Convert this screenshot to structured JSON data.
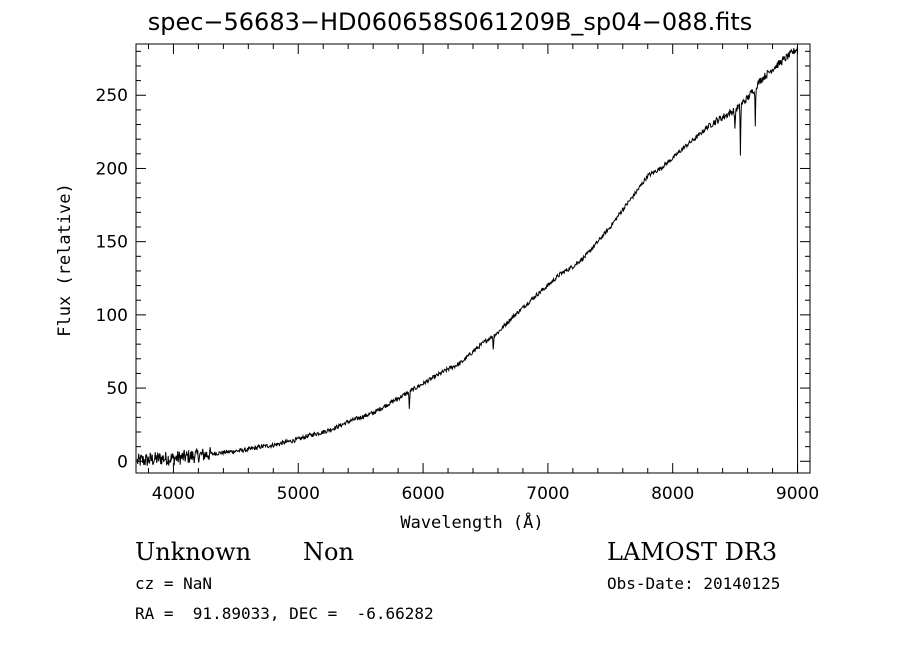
{
  "chart_data": {
    "type": "line",
    "title": "spec−56683−HD060658S061209B_sp04−088.fits",
    "xlabel": "Wavelength (Å)",
    "ylabel": "Flux (relative)",
    "xlim": [
      3700,
      9100
    ],
    "ylim": [
      -8,
      285
    ],
    "xticks": [
      4000,
      5000,
      6000,
      7000,
      8000,
      9000
    ],
    "yticks": [
      0,
      50,
      100,
      150,
      200,
      250
    ],
    "grid": false,
    "series": [
      {
        "x": [
          3700,
          3800,
          3900,
          4000,
          4100,
          4200,
          4300,
          4400,
          4500,
          4600,
          4700,
          4800,
          4900,
          5000,
          5100,
          5200,
          5300,
          5400,
          5500,
          5600,
          5700,
          5800,
          5900,
          6000,
          6100,
          6200,
          6300,
          6400,
          6500,
          6600,
          6700,
          6800,
          6900,
          7000,
          7100,
          7200,
          7300,
          7400,
          7500,
          7600,
          7700,
          7800,
          7900,
          8000,
          8100,
          8200,
          8300,
          8400,
          8500,
          8600,
          8700,
          8800,
          8900,
          9000
        ],
        "y": [
          0,
          1,
          2,
          2,
          3,
          4,
          5,
          6,
          7,
          8,
          10,
          11,
          13,
          15,
          18,
          20,
          23,
          27,
          30,
          33,
          38,
          43,
          48,
          53,
          58,
          63,
          67,
          75,
          82,
          88,
          97,
          105,
          113,
          120,
          128,
          133,
          140,
          150,
          160,
          172,
          183,
          195,
          200,
          207,
          215,
          222,
          230,
          235,
          240,
          248,
          260,
          268,
          275,
          282
        ],
        "absorption_features": [
          {
            "x": 5890,
            "depth": 12
          },
          {
            "x": 6563,
            "depth": 10
          },
          {
            "x": 8498,
            "depth": 15
          },
          {
            "x": 8542,
            "depth": 33
          },
          {
            "x": 8662,
            "depth": 25
          }
        ]
      }
    ]
  },
  "info": {
    "object_class": "Unknown",
    "object_subclass": "Non",
    "survey": "LAMOST DR3",
    "redshift": "cz = NaN",
    "obs_date": "Obs-Date: 20140125",
    "coords": "RA =  91.89033, DEC =  -6.66282"
  }
}
